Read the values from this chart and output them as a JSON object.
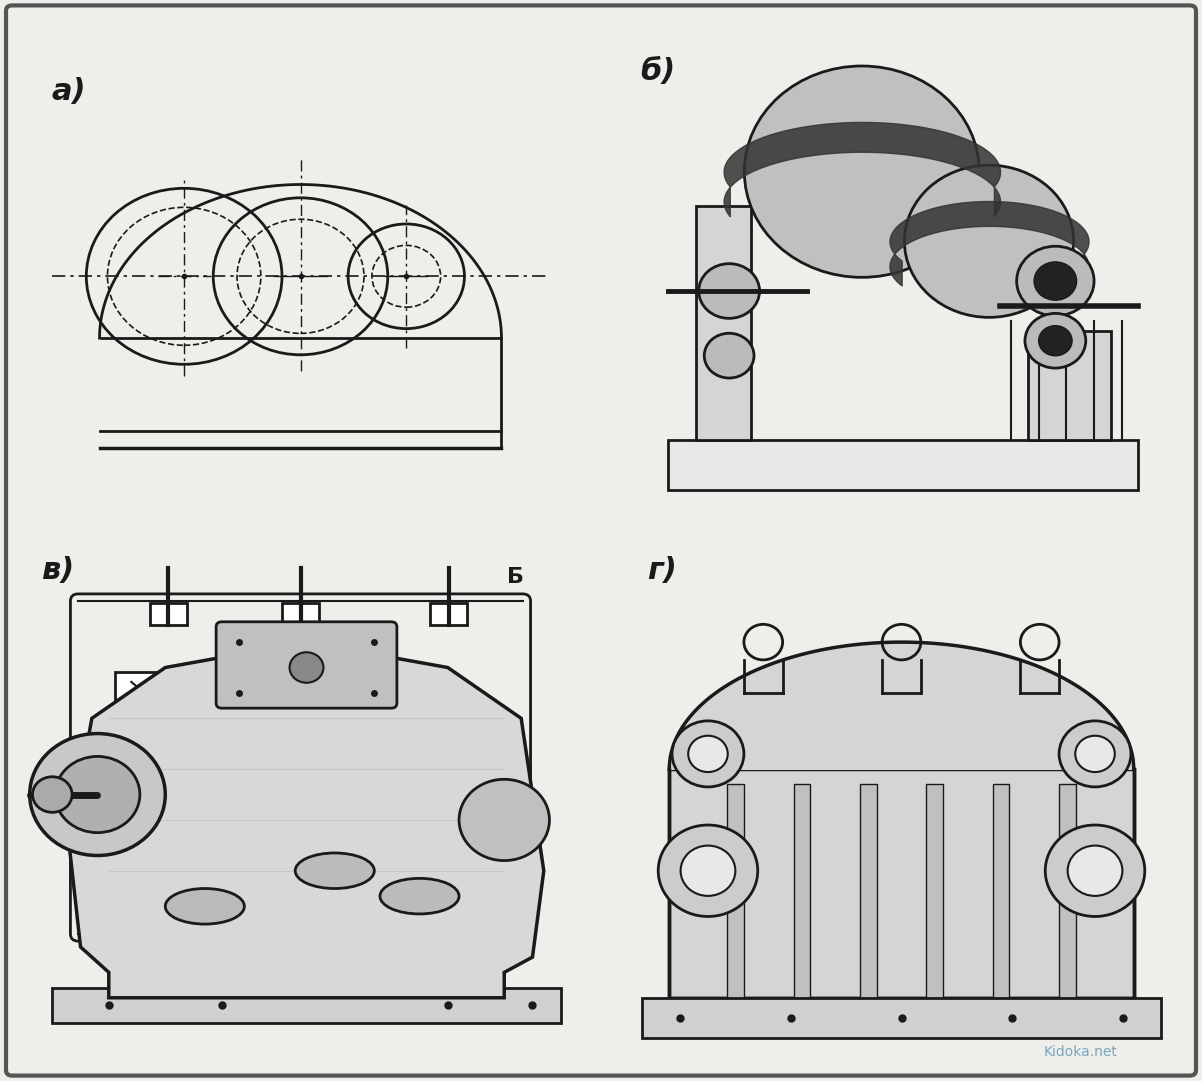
{
  "background_color": "#f0eeeb",
  "border_color": "#888888",
  "title": "",
  "labels": {
    "a": "а)",
    "b": "б)",
    "v": "в)",
    "g": "г)"
  },
  "label_fontsize": 22,
  "label_style": "italic",
  "fig_width": 12.02,
  "fig_height": 10.81,
  "border_linewidth": 3,
  "panel_bg": "#f0eeeb",
  "diagram_color": "#1a1a1a",
  "watermark": "Kidoka.net",
  "watermark_color": "#4488aa",
  "watermark_fontsize": 10
}
